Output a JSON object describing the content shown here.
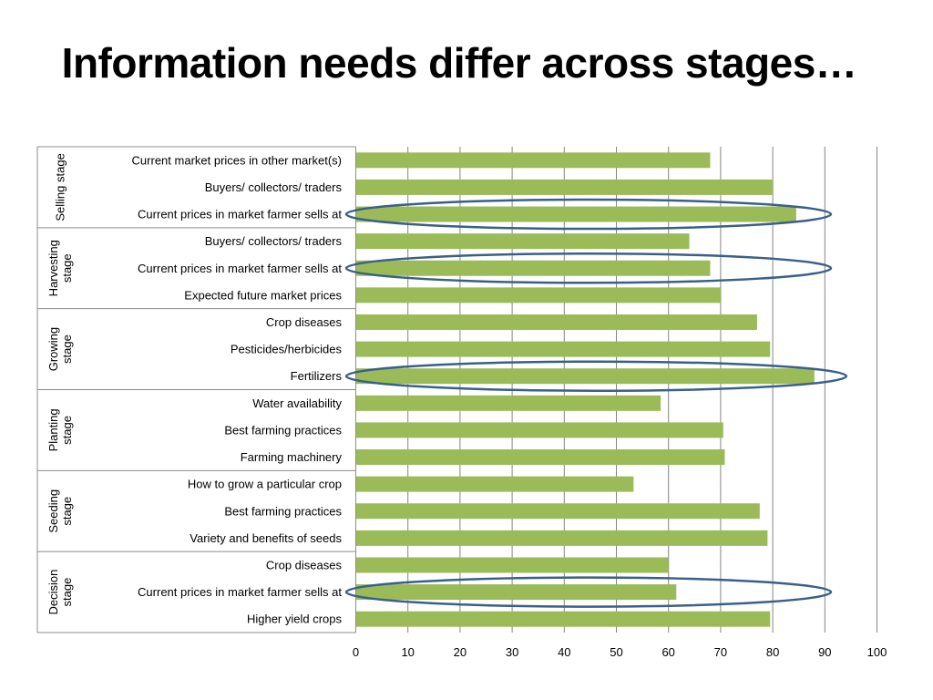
{
  "title": "Information needs differ across stages…",
  "colors": {
    "bar": "#9bbb59",
    "ellipse": "#3a5f8a",
    "grid": "#868686",
    "frame": "#8c8c8c"
  },
  "chart_data": {
    "type": "bar",
    "orientation": "horizontal",
    "xlim": [
      0,
      100
    ],
    "xticks": [
      0,
      10,
      20,
      30,
      40,
      50,
      60,
      70,
      80,
      90,
      100
    ],
    "grid": "vertical",
    "categories": [
      {
        "label": "Current market prices in other market(s)",
        "group": "Selling stage",
        "value": 68
      },
      {
        "label": "Buyers/ collectors/ traders",
        "group": "Selling stage",
        "value": 80
      },
      {
        "label": "Current prices in market farmer sells at",
        "group": "Selling stage",
        "value": 84.5,
        "highlighted": true
      },
      {
        "label": "Buyers/ collectors/ traders",
        "group": "Harvesting stage",
        "value": 64
      },
      {
        "label": "Current prices in market farmer sells at",
        "group": "Harvesting stage",
        "value": 68,
        "highlighted": true
      },
      {
        "label": "Expected future market prices",
        "group": "Harvesting stage",
        "value": 70
      },
      {
        "label": "Crop diseases",
        "group": "Growing stage",
        "value": 77
      },
      {
        "label": "Pesticides/herbicides",
        "group": "Growing stage",
        "value": 79.5
      },
      {
        "label": "Fertilizers",
        "group": "Growing stage",
        "value": 88,
        "highlighted": true
      },
      {
        "label": "Water availability",
        "group": "Planting stage",
        "value": 58.5
      },
      {
        "label": "Best farming practices",
        "group": "Planting stage",
        "value": 70.5
      },
      {
        "label": "Farming machinery",
        "group": "Planting stage",
        "value": 70.8
      },
      {
        "label": "How to grow a particular crop",
        "group": "Seeding stage",
        "value": 53.3
      },
      {
        "label": "Best farming practices",
        "group": "Seeding stage",
        "value": 77.5
      },
      {
        "label": "Variety and benefits of seeds",
        "group": "Seeding stage",
        "value": 79
      },
      {
        "label": "Crop diseases",
        "group": "Decision stage",
        "value": 60
      },
      {
        "label": "Current prices in market farmer sells at",
        "group": "Decision stage",
        "value": 61.5,
        "highlighted": true
      },
      {
        "label": "Higher yield crops",
        "group": "Decision stage",
        "value": 79.5
      }
    ],
    "groups": [
      {
        "lines": [
          "Selling stage"
        ]
      },
      {
        "lines": [
          "Harvesting",
          "stage"
        ]
      },
      {
        "lines": [
          "Growing",
          "stage"
        ]
      },
      {
        "lines": [
          "Planting",
          "stage"
        ]
      },
      {
        "lines": [
          "Seeding",
          "stage"
        ]
      },
      {
        "lines": [
          "Decision",
          "stage"
        ]
      }
    ]
  }
}
